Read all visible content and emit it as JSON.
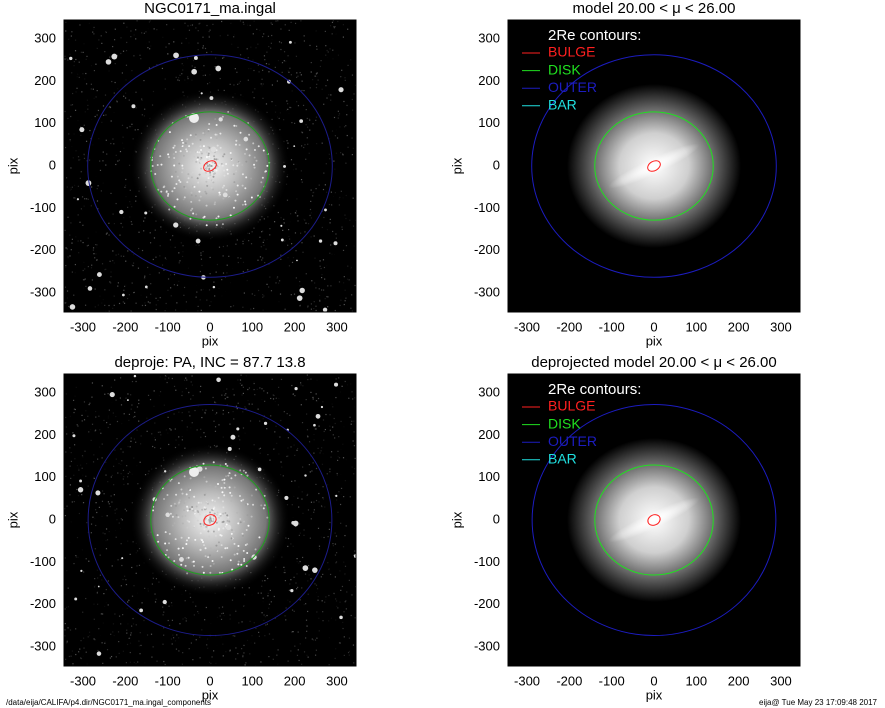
{
  "chart_data": [
    {
      "type": "image",
      "title": "NGC0171_ma.ingal",
      "xlabel": "pix",
      "ylabel": "pix",
      "xlim": [
        -345,
        345
      ],
      "ylim": [
        -345,
        345
      ],
      "xticks": [
        -300,
        -200,
        -100,
        0,
        100,
        200,
        300
      ],
      "yticks": [
        -300,
        -200,
        -100,
        0,
        100,
        200,
        300
      ],
      "contours": [
        {
          "color": "#ff2020",
          "rx": 16,
          "ry": 11,
          "angle": 30
        },
        {
          "color": "#20a020",
          "rx": 140,
          "ry": 128,
          "angle": 0
        },
        {
          "color": "#1c1c8a",
          "rx": 289,
          "ry": 263,
          "angle": 0
        }
      ]
    },
    {
      "type": "model",
      "title": "model  20.00 < μ <  26.00",
      "xlabel": "pix",
      "ylabel": "pix",
      "xlim": [
        -345,
        345
      ],
      "ylim": [
        -345,
        345
      ],
      "xticks": [
        -300,
        -200,
        -100,
        0,
        100,
        200,
        300
      ],
      "yticks": [
        -300,
        -200,
        -100,
        0,
        100,
        200,
        300
      ],
      "legend_title": "2Re contours:",
      "contours": [
        {
          "name": "BULGE",
          "color": "#ff2020",
          "rx": 16,
          "ry": 11,
          "angle": 30
        },
        {
          "name": "DISK",
          "color": "#20e020",
          "rx": 140,
          "ry": 128,
          "angle": 0
        },
        {
          "name": "OUTER",
          "color": "#1c1cc0",
          "rx": 289,
          "ry": 263,
          "angle": 0
        },
        {
          "name": "BAR",
          "color": "#20e0e0"
        }
      ]
    },
    {
      "type": "image",
      "title": "deproje: PA, INC =  87.7    13.8",
      "xlabel": "pix",
      "ylabel": "pix",
      "xlim": [
        -345,
        345
      ],
      "ylim": [
        -345,
        345
      ],
      "xticks": [
        -300,
        -200,
        -100,
        0,
        100,
        200,
        300
      ],
      "yticks": [
        -300,
        -200,
        -100,
        0,
        100,
        200,
        300
      ],
      "contours": [
        {
          "color": "#ff2020",
          "rx": 15,
          "ry": 12,
          "angle": 25
        },
        {
          "color": "#20a020",
          "rx": 140,
          "ry": 130,
          "angle": 0
        },
        {
          "color": "#1c1c8a",
          "rx": 288,
          "ry": 273,
          "angle": 0
        }
      ]
    },
    {
      "type": "model",
      "title": "deprojected model  20.00 < μ <  26.00",
      "xlabel": "pix",
      "ylabel": "pix",
      "xlim": [
        -345,
        345
      ],
      "ylim": [
        -345,
        345
      ],
      "xticks": [
        -300,
        -200,
        -100,
        0,
        100,
        200,
        300
      ],
      "yticks": [
        -300,
        -200,
        -100,
        0,
        100,
        200,
        300
      ],
      "legend_title": "2Re contours:",
      "contours": [
        {
          "name": "BULGE",
          "color": "#ff2020",
          "rx": 15,
          "ry": 12,
          "angle": 25
        },
        {
          "name": "DISK",
          "color": "#20e020",
          "rx": 140,
          "ry": 130,
          "angle": 0
        },
        {
          "name": "OUTER",
          "color": "#1c1cc0",
          "rx": 288,
          "ry": 273,
          "angle": 0
        },
        {
          "name": "BAR",
          "color": "#20e0e0"
        }
      ]
    }
  ],
  "footer": {
    "left": "/data/eija/CALIFA/p4.dir/NGC0171_ma.ingal_components",
    "right": "eija@  Tue May 23 17:09:48 2017"
  }
}
